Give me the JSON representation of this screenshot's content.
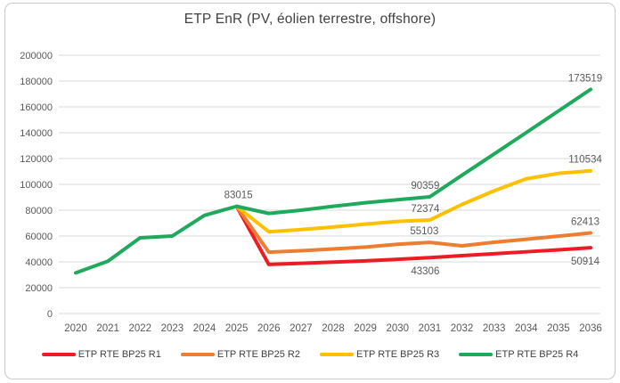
{
  "figure": {
    "background": "#FFFFFF",
    "border_color": "#C9C9C9"
  },
  "chart_data": {
    "type": "line",
    "title": "ETP EnR (PV, éolien terrestre, offshore)",
    "title_color": "#404040",
    "axis_text_color": "#595959",
    "data_label_color": "#595959",
    "gridline_color": "#D9D9D9",
    "grid": true,
    "legend_position": "bottom",
    "x_categories": [
      "2020",
      "2021",
      "2022",
      "2023",
      "2024",
      "2025",
      "2026",
      "2027",
      "2028",
      "2029",
      "2030",
      "2031",
      "2032",
      "2033",
      "2034",
      "2035",
      "2036"
    ],
    "ylim": [
      0,
      200000
    ],
    "ytick_step": 20000,
    "yticks": [
      "0",
      "20000",
      "40000",
      "60000",
      "80000",
      "100000",
      "120000",
      "140000",
      "160000",
      "180000",
      "200000"
    ],
    "series": [
      {
        "name": "ETP RTE BP25 R1",
        "color": "#ED1C24",
        "values": [
          null,
          null,
          null,
          null,
          null,
          83015,
          38000,
          38900,
          39800,
          40800,
          42000,
          43306,
          44800,
          46300,
          47800,
          49300,
          50914
        ]
      },
      {
        "name": "ETP RTE BP25 R2",
        "color": "#ED7D31",
        "values": [
          null,
          null,
          null,
          null,
          null,
          83015,
          47500,
          48600,
          50000,
          51500,
          53600,
          55103,
          52400,
          55200,
          57500,
          59900,
          62413
        ]
      },
      {
        "name": "ETP RTE BP25 R3",
        "color": "#FFC000",
        "values": [
          null,
          null,
          null,
          null,
          null,
          83015,
          63300,
          65000,
          67000,
          69200,
          71300,
          72374,
          84400,
          95000,
          104300,
          108500,
          110534
        ]
      },
      {
        "name": "ETP RTE BP25 R4",
        "color": "#1FA95C",
        "values": [
          31500,
          40500,
          58600,
          60000,
          76000,
          83015,
          77500,
          80000,
          83000,
          85800,
          88100,
          90359,
          107000,
          123500,
          140100,
          156800,
          173519
        ]
      }
    ],
    "point_labels": [
      {
        "series": 3,
        "x": "2025",
        "text": "83015",
        "placement": "above",
        "dx": 2
      },
      {
        "series": 3,
        "x": "2031",
        "text": "90359",
        "placement": "above",
        "dx": -5
      },
      {
        "series": 3,
        "x": "2036",
        "text": "173519",
        "placement": "above",
        "dx": -6
      },
      {
        "series": 2,
        "x": "2031",
        "text": "72374",
        "placement": "above",
        "dx": -5
      },
      {
        "series": 2,
        "x": "2036",
        "text": "110534",
        "placement": "above",
        "dx": -6
      },
      {
        "series": 1,
        "x": "2031",
        "text": "55103",
        "placement": "above",
        "dx": -6
      },
      {
        "series": 1,
        "x": "2036",
        "text": "62413",
        "placement": "above",
        "dx": -6
      },
      {
        "series": 0,
        "x": "2031",
        "text": "43306",
        "placement": "below",
        "dx": -5
      },
      {
        "series": 0,
        "x": "2036",
        "text": "50914",
        "placement": "below",
        "dx": -6
      }
    ]
  }
}
